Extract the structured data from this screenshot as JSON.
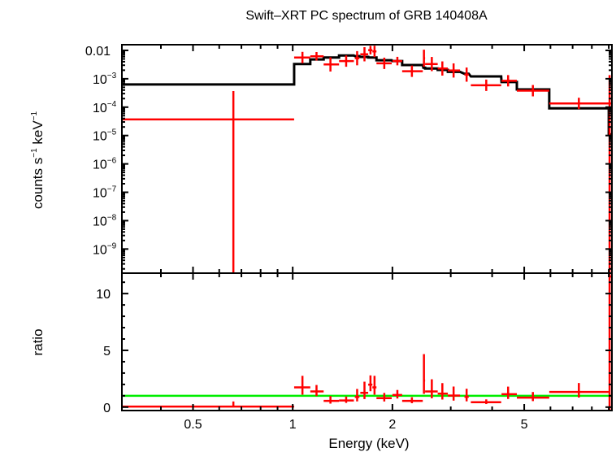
{
  "chart_data": {
    "type": "scatter",
    "title": "Swift–XRT PC spectrum of GRB 140408A",
    "xlabel": "Energy (keV)",
    "xscale": "log",
    "xlim": [
      0.305,
      9.2
    ],
    "x_ticks": [
      {
        "value": 0.5,
        "label": "0.5"
      },
      {
        "value": 1,
        "label": "1"
      },
      {
        "value": 2,
        "label": "2"
      },
      {
        "value": 5,
        "label": "5"
      }
    ],
    "panels": {
      "spectrum": {
        "ylabel": {
          "main": "counts s",
          "exp1": "−1",
          "mid": " keV",
          "exp2": "−1"
        },
        "yscale": "log",
        "ylim_log10": [
          -9.85,
          -1.8
        ],
        "y_ticks": [
          {
            "log": -2,
            "base": "0.01",
            "exp": ""
          },
          {
            "log": -3,
            "base": "10",
            "exp": "−3"
          },
          {
            "log": -4,
            "base": "10",
            "exp": "−4"
          },
          {
            "log": -5,
            "base": "10",
            "exp": "−5"
          },
          {
            "log": -6,
            "base": "10",
            "exp": "−6"
          },
          {
            "log": -7,
            "base": "10",
            "exp": "−7"
          },
          {
            "log": -8,
            "base": "10",
            "exp": "−8"
          },
          {
            "log": -9,
            "base": "10",
            "exp": "−9"
          }
        ]
      },
      "ratio": {
        "ylabel": "ratio",
        "ylim": [
          -0.3,
          11.8
        ],
        "y_ticks": [
          {
            "value": 0,
            "label": "0"
          },
          {
            "value": 5,
            "label": "5"
          },
          {
            "value": 10,
            "label": "10"
          }
        ],
        "reference_line": 1
      }
    },
    "series": {
      "data_color": "#ff0000",
      "model_color": "#000000",
      "ref_color": "#00ee00",
      "e_lo": [
        0.305,
        1.01,
        1.13,
        1.24,
        1.38,
        1.54,
        1.6,
        1.69,
        1.74,
        1.79,
        2.0,
        2.14,
        2.48,
        2.51,
        2.74,
        2.94,
        3.3,
        3.45,
        4.27,
        4.75,
        5.95,
        9.0
      ],
      "e_hi": [
        1.01,
        1.13,
        1.24,
        1.38,
        1.53,
        1.59,
        1.69,
        1.74,
        1.79,
        1.99,
        2.14,
        2.47,
        2.51,
        2.74,
        2.94,
        3.2,
        3.4,
        4.26,
        4.75,
        5.95,
        9.0,
        9.2
      ],
      "energy": [
        0.662,
        1.07,
        1.18,
        1.3,
        1.45,
        1.565,
        1.647,
        1.717,
        1.766,
        1.89,
        2.07,
        2.29,
        2.49,
        2.63,
        2.83,
        3.06,
        3.35,
        3.84,
        4.47,
        5.31,
        7.31,
        9.05
      ],
      "counts": [
        3.7e-05,
        0.0056,
        0.0062,
        0.0032,
        0.0042,
        0.0053,
        0.0073,
        0.0102,
        0.0092,
        0.0035,
        0.0042,
        0.00184,
        0.0053,
        0.0033,
        0.0023,
        0.00196,
        0.0014,
        0.00059,
        0.00085,
        0.00038,
        0.000135,
        0.000135
      ],
      "counts_err_dex": [
        1.0,
        0.2,
        0.15,
        0.25,
        0.2,
        0.25,
        0.25,
        0.15,
        0.2,
        0.2,
        0.15,
        0.2,
        0.3,
        0.25,
        0.25,
        0.25,
        0.25,
        0.2,
        0.2,
        0.2,
        0.2,
        1.0
      ],
      "model": [
        0.00063,
        0.0033,
        0.0048,
        0.0056,
        0.0066,
        0.0063,
        0.0059,
        0.0056,
        0.0056,
        0.0045,
        0.0042,
        0.00305,
        0.00245,
        0.0023,
        0.00205,
        0.00176,
        0.0015,
        0.00121,
        0.00077,
        0.00042,
        9.1e-05,
        1.1e-05
      ],
      "ratio": [
        0.05,
        1.74,
        1.38,
        0.55,
        0.59,
        0.9,
        1.26,
        1.98,
        1.74,
        0.79,
        1.07,
        0.55,
        2.34,
        1.38,
        1.19,
        1.02,
        0.91,
        0.43,
        1.14,
        0.84,
        1.34,
        11.5
      ]
    }
  }
}
